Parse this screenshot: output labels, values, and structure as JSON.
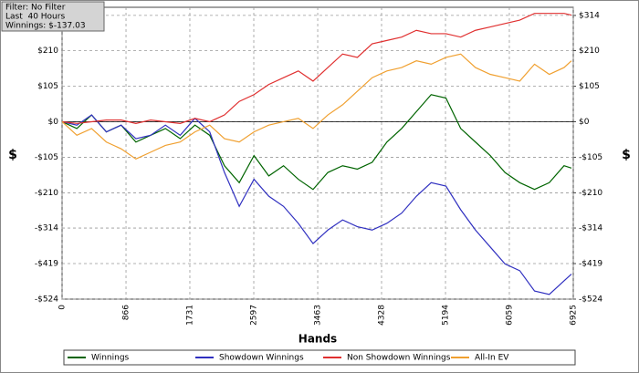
{
  "chart_data": {
    "type": "line",
    "annotations": [
      "Filter: No Filter",
      "Last  40 Hours",
      "Winnings: $-137.03"
    ],
    "x_label": "Hands",
    "y_label": "$",
    "y2_label": "$",
    "x": [
      0,
      200,
      400,
      600,
      800,
      1000,
      1200,
      1400,
      1600,
      1800,
      2000,
      2200,
      2400,
      2600,
      2800,
      3000,
      3200,
      3400,
      3600,
      3800,
      4000,
      4200,
      4400,
      4600,
      4800,
      5000,
      5200,
      5400,
      5600,
      5800,
      6000,
      6200,
      6400,
      6600,
      6800,
      6900
    ],
    "series": [
      {
        "name": "Winnings",
        "color": "#006400",
        "values": [
          0,
          -20,
          20,
          -30,
          -10,
          -60,
          -40,
          -20,
          -50,
          -10,
          -40,
          -130,
          -180,
          -100,
          -160,
          -130,
          -170,
          -200,
          -150,
          -130,
          -140,
          -120,
          -60,
          -20,
          30,
          80,
          70,
          -20,
          -60,
          -100,
          -150,
          -180,
          -200,
          -180,
          -130,
          -137.03
        ]
      },
      {
        "name": "Showdown Winnings",
        "color": "#3030c0",
        "values": [
          0,
          -10,
          20,
          -30,
          -10,
          -50,
          -40,
          -10,
          -40,
          10,
          -30,
          -150,
          -250,
          -170,
          -220,
          -250,
          -300,
          -360,
          -320,
          -290,
          -310,
          -320,
          -300,
          -270,
          -220,
          -180,
          -190,
          -260,
          -320,
          -370,
          -420,
          -440,
          -500,
          -510,
          -470,
          -450
        ]
      },
      {
        "name": "Non Showdown Winnings",
        "color": "#e03030",
        "values": [
          0,
          -5,
          0,
          5,
          5,
          -5,
          5,
          0,
          -5,
          10,
          0,
          20,
          60,
          80,
          110,
          130,
          150,
          120,
          160,
          200,
          190,
          230,
          240,
          250,
          270,
          260,
          260,
          250,
          270,
          280,
          290,
          300,
          320,
          320,
          320,
          315
        ]
      },
      {
        "name": "All-In EV",
        "color": "#f0a030",
        "values": [
          0,
          -40,
          -20,
          -60,
          -80,
          -110,
          -90,
          -70,
          -60,
          -30,
          -10,
          -50,
          -60,
          -30,
          -10,
          0,
          10,
          -20,
          20,
          50,
          90,
          130,
          150,
          160,
          180,
          170,
          190,
          200,
          160,
          140,
          130,
          120,
          170,
          140,
          160,
          180
        ]
      }
    ],
    "xlim": [
      0,
      6925
    ],
    "xticks": [
      0,
      866,
      1731,
      2597,
      3463,
      4328,
      5194,
      6059,
      6925
    ],
    "ylim": [
      -524,
      338
    ],
    "yticks": [
      {
        "value": 314,
        "label": "$314"
      },
      {
        "value": 210,
        "label": "$210"
      },
      {
        "value": 105,
        "label": "$105"
      },
      {
        "value": 0,
        "label": "$0"
      },
      {
        "value": -105,
        "label": "-$105"
      },
      {
        "value": -210,
        "label": "-$210"
      },
      {
        "value": -314,
        "label": "-$314"
      },
      {
        "value": -419,
        "label": "-$419"
      },
      {
        "value": -524,
        "label": "-$524"
      }
    ],
    "y2lim": [
      -524,
      338
    ],
    "y2ticks": [
      {
        "value": 314,
        "label": "$314"
      },
      {
        "value": 210,
        "label": "$210"
      },
      {
        "value": 105,
        "label": "$105"
      },
      {
        "value": 0,
        "label": "$0"
      },
      {
        "value": -105,
        "label": "-$105"
      },
      {
        "value": -210,
        "label": "-$210"
      },
      {
        "value": -314,
        "label": "-$314"
      },
      {
        "value": -419,
        "label": "-$419"
      },
      {
        "value": -524,
        "label": "-$524"
      }
    ],
    "grid": true
  }
}
